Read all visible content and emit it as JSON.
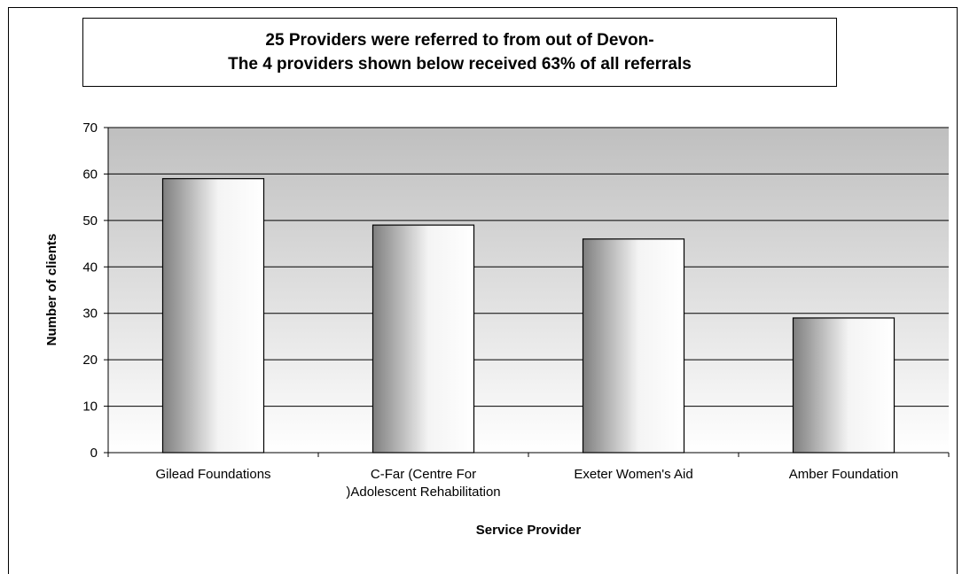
{
  "chart_data": {
    "type": "bar",
    "title_lines": [
      "25 Providers were referred to from out of Devon-",
      "The 4 providers shown below received 63% of all referrals"
    ],
    "categories": [
      [
        "Gilead Foundations"
      ],
      [
        "C-Far (Centre For",
        ")Adolescent Rehabilitation"
      ],
      [
        "Exeter Women's Aid"
      ],
      [
        "Amber Foundation"
      ]
    ],
    "values": [
      59,
      49,
      46,
      29
    ],
    "xlabel": "Service Provider",
    "ylabel": "Number of clients",
    "ylim": [
      0,
      70
    ],
    "yticks": [
      0,
      10,
      20,
      30,
      40,
      50,
      60,
      70
    ],
    "grid": true,
    "legend": "none"
  }
}
